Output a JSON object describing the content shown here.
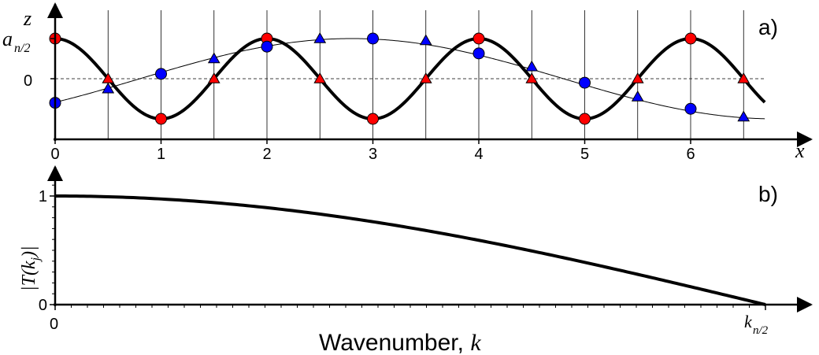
{
  "chart_data": [
    {
      "type": "line",
      "panel_label": "a)",
      "x_axis_label": "x",
      "y_axis_label": "z",
      "y_tick_label_top": "a",
      "y_tick_label_top_sub": "n/2",
      "y_tick_label_zero": "0",
      "x_ticks": [
        0,
        1,
        2,
        3,
        4,
        5,
        6
      ],
      "xlim": [
        0,
        6.7
      ],
      "ylim": [
        -1.45,
        1.45
      ],
      "sample_spacing": 0.5,
      "zero_line": "dashed",
      "series": [
        {
          "color": "#000000",
          "curve": {
            "amplitude": 1,
            "period": 2,
            "phase": 0
          },
          "markers": [
            {
              "shape": "circle",
              "color": "#ff0000",
              "points": [
                [
                  0,
                  1
                ],
                [
                  1,
                  -1
                ],
                [
                  2,
                  1
                ],
                [
                  3,
                  -1
                ],
                [
                  4,
                  1
                ],
                [
                  5,
                  -1
                ],
                [
                  6,
                  1
                ]
              ]
            },
            {
              "shape": "triangle",
              "color": "#ff0000",
              "points": [
                [
                  0.5,
                  0
                ],
                [
                  1.5,
                  0
                ],
                [
                  2.5,
                  0
                ],
                [
                  3.5,
                  0
                ],
                [
                  4.5,
                  0
                ],
                [
                  5.5,
                  0
                ],
                [
                  6.5,
                  0
                ]
              ]
            }
          ]
        },
        {
          "color": "#000000",
          "curve": {
            "amplitude": 1,
            "period": 8.0,
            "phase": 2.8
          },
          "markers": [
            {
              "shape": "circle",
              "color": "#0000ff",
              "points": [
                [
                  0,
                  -0.6
                ],
                [
                  1,
                  0.12
                ],
                [
                  2,
                  0.8
                ],
                [
                  3,
                  1.0
                ],
                [
                  4,
                  0.63
                ],
                [
                  5,
                  -0.1
                ],
                [
                  6,
                  -0.75
                ]
              ]
            },
            {
              "shape": "triangle",
              "color": "#0000ff",
              "points": [
                [
                  0.5,
                  -0.25
                ],
                [
                  1.5,
                  0.5
                ],
                [
                  2.5,
                  1.0
                ],
                [
                  3.5,
                  0.95
                ],
                [
                  4.5,
                  0.3
                ],
                [
                  5.5,
                  -0.45
                ],
                [
                  6.5,
                  -0.95
                ]
              ]
            }
          ]
        }
      ]
    },
    {
      "type": "line",
      "panel_label": "b)",
      "xlabel_text": "Wavenumber, ",
      "xlabel_symbol": "k",
      "ylabel": "|T(k",
      "ylabel_sub": "j",
      "ylabel_end": ")|",
      "y_ticks": [
        0,
        1
      ],
      "x_tick_label_zero": "0",
      "x_tick_label_end": "k",
      "x_tick_label_end_sub": "n/2",
      "xlim": [
        0,
        1
      ],
      "ylim": [
        0,
        1.22
      ],
      "series": [
        {
          "name": "",
          "color": "#000000",
          "x": [
            0,
            0.1,
            0.2,
            0.3,
            0.4,
            0.5,
            0.6,
            0.7,
            0.8,
            0.9,
            1.0
          ],
          "y": [
            1.0,
            0.988,
            0.951,
            0.891,
            0.809,
            0.707,
            0.588,
            0.454,
            0.309,
            0.156,
            0.0
          ]
        }
      ]
    }
  ]
}
